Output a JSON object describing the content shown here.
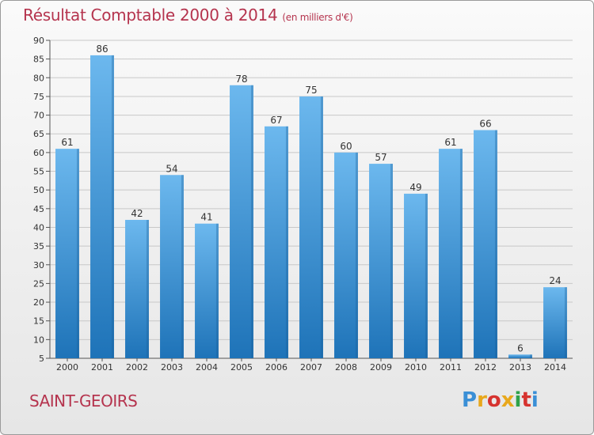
{
  "header": {
    "title": "Résultat Comptable 2000 à 2014",
    "subtitle": "(en milliers d'€)"
  },
  "footer": {
    "place": "SAINT-GEOIRS",
    "logo_letters": [
      "P",
      "r",
      "o",
      "x",
      "i",
      "t",
      "i"
    ],
    "logo_colors": [
      "#3a8fd6",
      "#e8a81c",
      "#d6332f",
      "#e8a81c",
      "#2fa24a",
      "#d6332f",
      "#3a8fd6"
    ]
  },
  "colors": {
    "bar_light": "#6cb8ee",
    "bar_dark": "#1e73b8",
    "title": "#b5344e",
    "grid": "#c8c8c8"
  },
  "chart_data": {
    "type": "bar",
    "title": "Résultat Comptable 2000 à 2014",
    "subtitle": "(en milliers d'€)",
    "xlabel": "",
    "ylabel": "",
    "categories": [
      "2000",
      "2001",
      "2002",
      "2003",
      "2004",
      "2005",
      "2006",
      "2007",
      "2008",
      "2009",
      "2010",
      "2011",
      "2012",
      "2013",
      "2014"
    ],
    "values": [
      61,
      86,
      42,
      54,
      41,
      78,
      67,
      75,
      60,
      57,
      49,
      61,
      66,
      6,
      24
    ],
    "ylim": [
      5,
      90
    ],
    "yticks": [
      5,
      10,
      15,
      20,
      25,
      30,
      35,
      40,
      45,
      50,
      55,
      60,
      65,
      70,
      75,
      80,
      85,
      90
    ],
    "grid": true
  }
}
